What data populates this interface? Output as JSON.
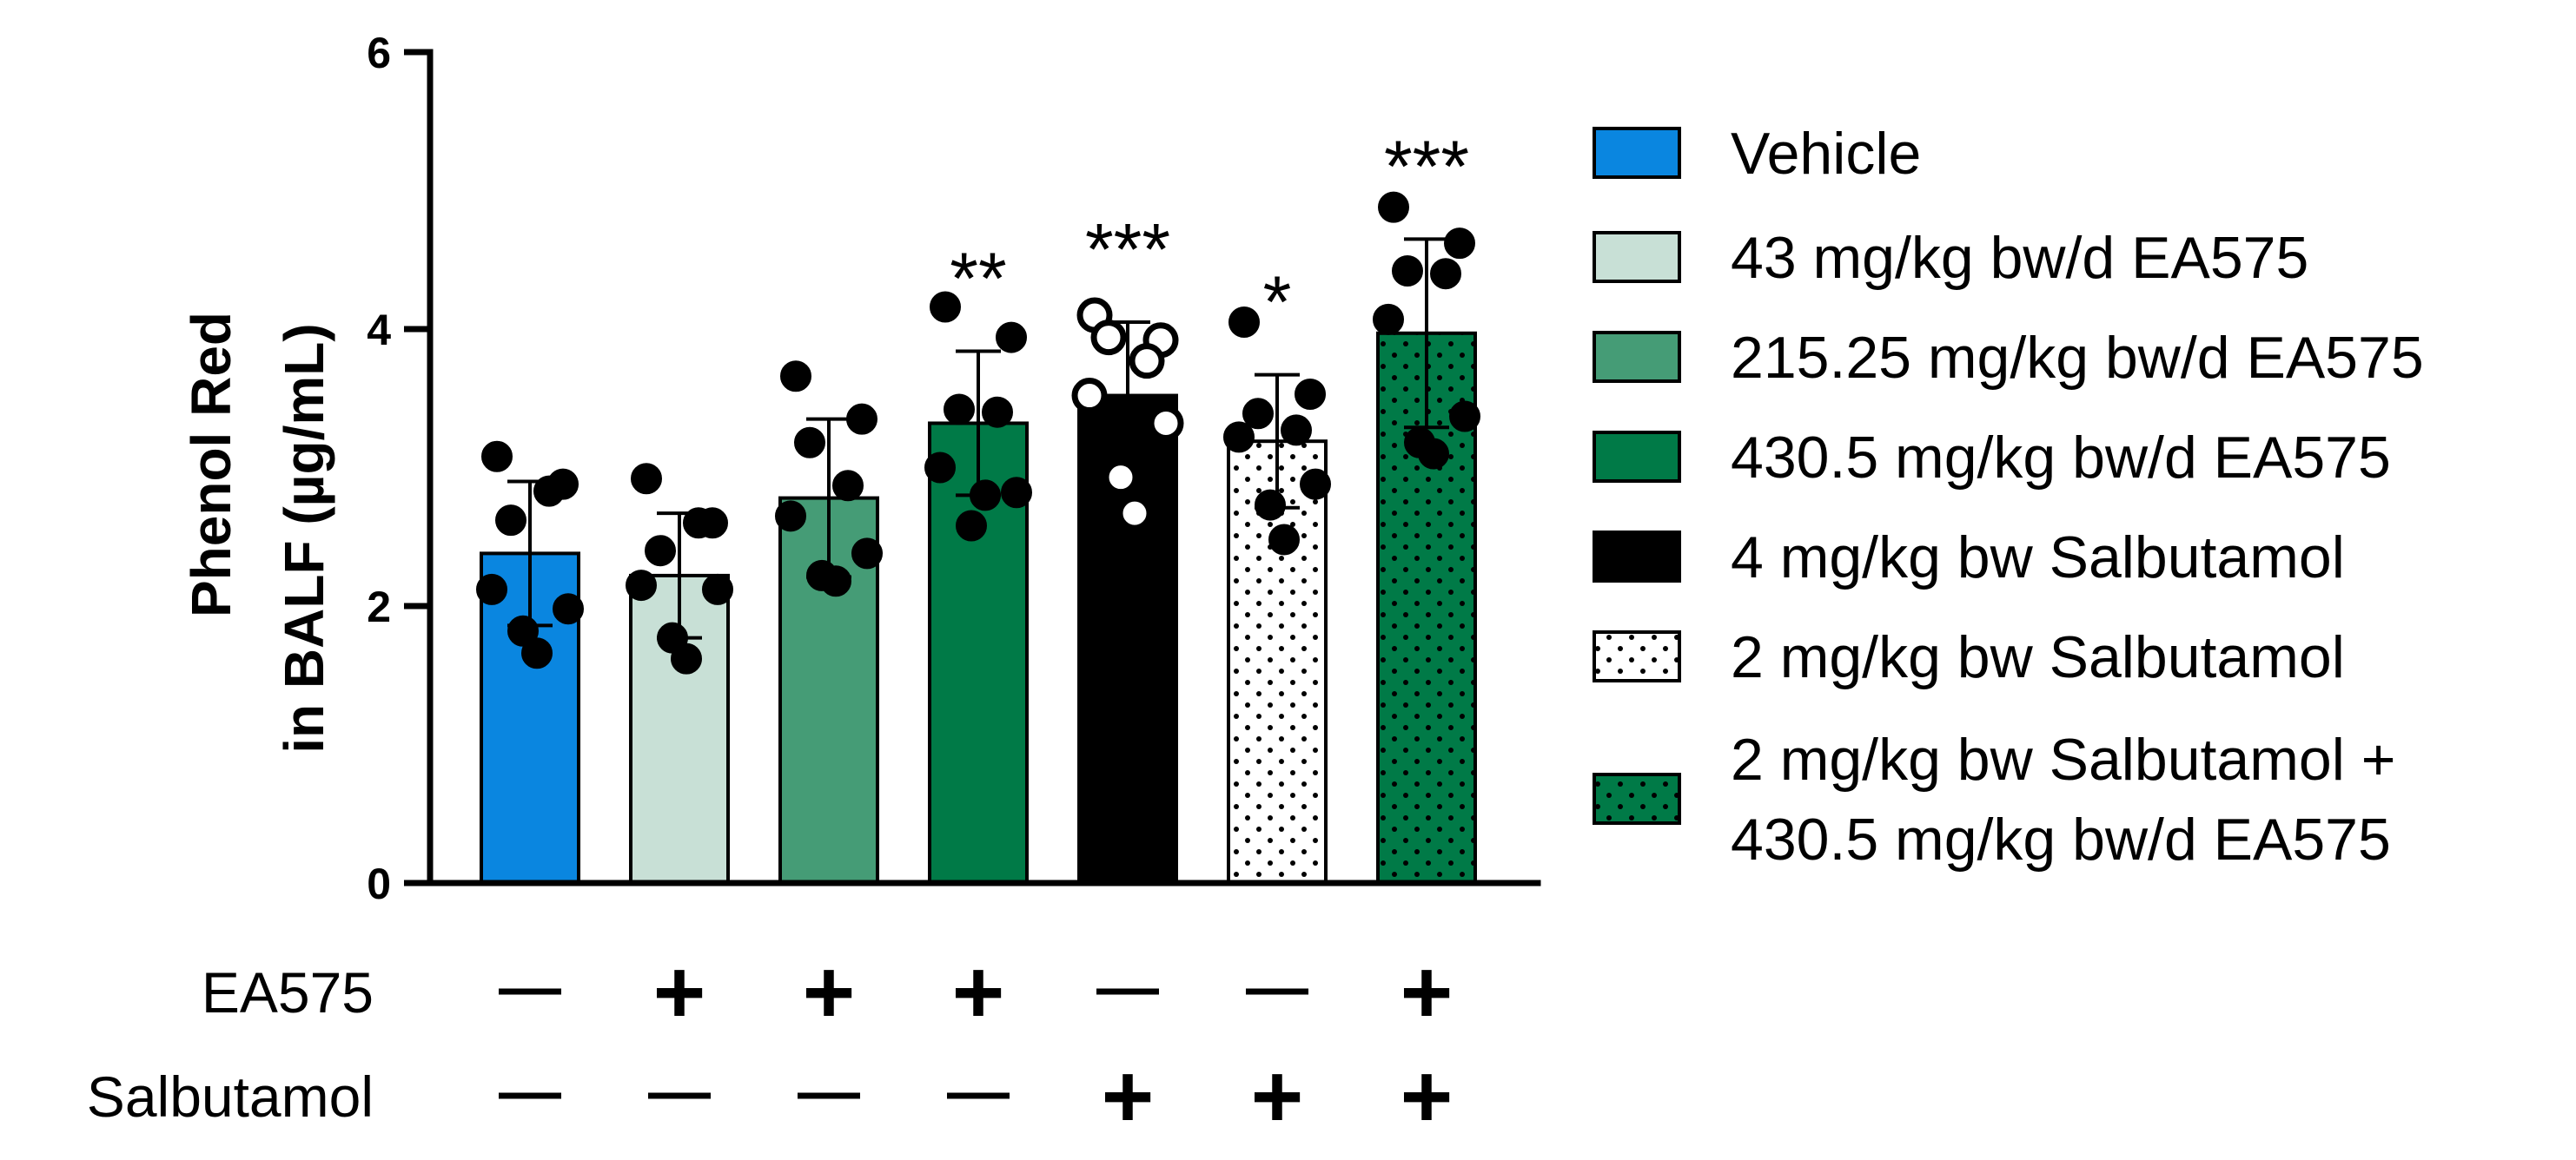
{
  "chart_data": {
    "type": "bar",
    "title": "",
    "ylabel_lines": [
      "Phenol Red",
      "in  BALF (µg/mL)"
    ],
    "xlabel": "",
    "ylim": [
      0,
      6
    ],
    "yticks": [
      0,
      2,
      4,
      6
    ],
    "categories": [
      "Vehicle",
      "43 mg/kg bw/d EA575",
      "215.25 mg/kg bw/d EA575",
      "430.5 mg/kg bw/d EA575",
      "4 mg/kg bw Salbutamol",
      "2 mg/kg bw Salbutamol",
      "2 mg/kg bw Salbutamol + 430.5 mg/kg bw/d EA575"
    ],
    "legend": [
      [
        "Vehicle"
      ],
      [
        "43 mg/kg bw/d EA575"
      ],
      [
        "215.25 mg/kg bw/d EA575"
      ],
      [
        "430.5 mg/kg bw/d EA575"
      ],
      [
        "4 mg/kg bw Salbutamol"
      ],
      [
        "2 mg/kg bw Salbutamol"
      ],
      [
        "2 mg/kg bw Salbutamol +",
        "430.5 mg/kg bw/d EA575"
      ]
    ],
    "legend_position": "right",
    "values": [
      2.38,
      2.22,
      2.78,
      3.32,
      3.52,
      3.19,
      3.97
    ],
    "sd": [
      0.52,
      0.45,
      0.57,
      0.52,
      0.53,
      0.48,
      0.68
    ],
    "significance": [
      "",
      "",
      "",
      "**",
      "***",
      "*",
      "***"
    ],
    "fills": [
      "#0a86e0",
      "#c8e0d6",
      "#459c76",
      "#007a47",
      "#000000",
      "dots-white",
      "dots-green"
    ],
    "points": [
      [
        3.08,
        2.88,
        2.62,
        2.83,
        2.12,
        1.98,
        1.82,
        1.66
      ],
      [
        2.92,
        2.6,
        2.4,
        2.6,
        2.15,
        2.12,
        1.77,
        1.62
      ],
      [
        3.66,
        3.35,
        3.18,
        2.87,
        2.65,
        2.38,
        2.22,
        2.18
      ],
      [
        4.16,
        3.94,
        3.42,
        3.4,
        3.0,
        2.82,
        2.58,
        2.8
      ],
      [
        4.1,
        3.92,
        3.94,
        3.77,
        3.52,
        3.32,
        2.93,
        2.67
      ],
      [
        4.05,
        3.53,
        3.39,
        3.27,
        3.22,
        2.88,
        2.73,
        2.48
      ],
      [
        4.88,
        4.62,
        4.42,
        4.4,
        4.07,
        3.37,
        3.18,
        3.1
      ]
    ],
    "hollow_points": [
      false,
      false,
      false,
      false,
      true,
      false,
      false
    ],
    "treatment_rows": [
      {
        "label": "EA575",
        "signs": [
          "—",
          "+",
          "+",
          "+",
          "—",
          "—",
          "+"
        ]
      },
      {
        "label": "Salbutamol",
        "signs": [
          "—",
          "—",
          "—",
          "—",
          "+",
          "+",
          "+"
        ]
      }
    ]
  }
}
